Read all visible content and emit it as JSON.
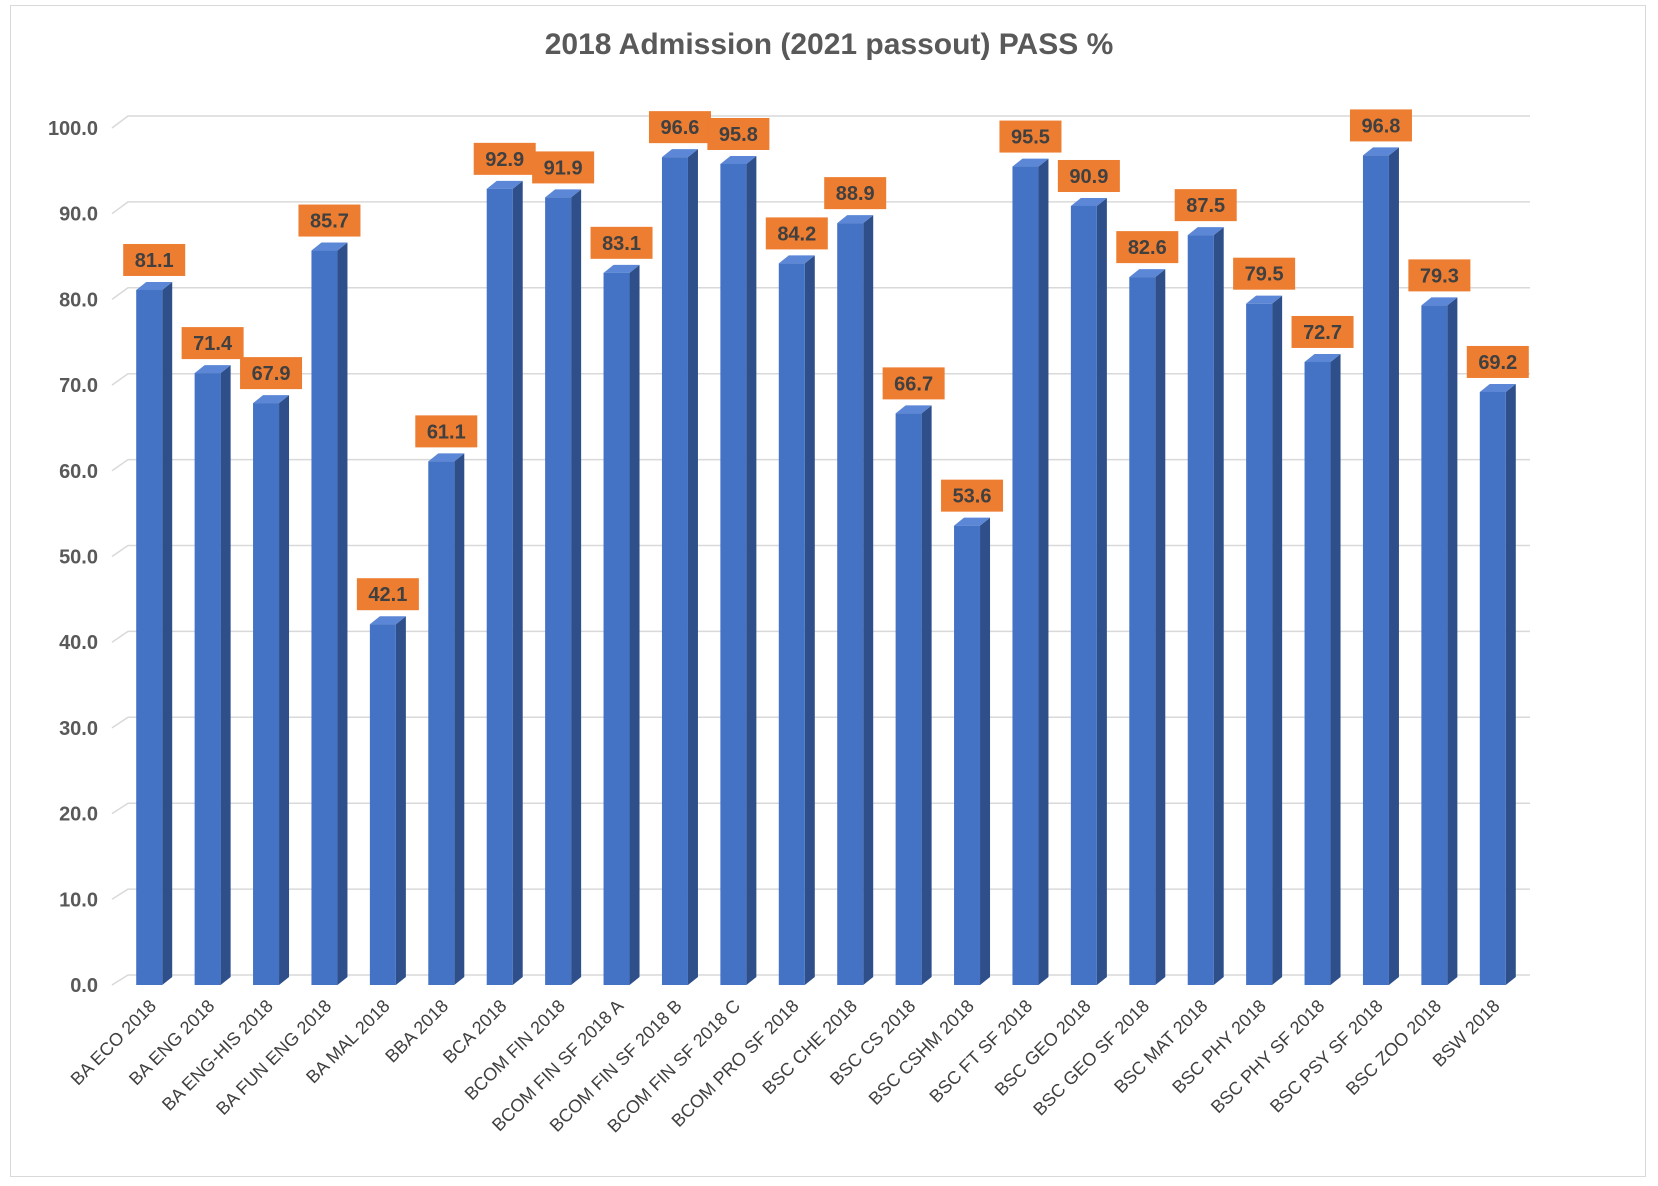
{
  "chart_data": {
    "type": "bar",
    "title": "2018 Admission (2021 passout) PASS %",
    "xlabel": "",
    "ylabel": "",
    "ylim": [
      0,
      100
    ],
    "yticks": [
      "0.0",
      "10.0",
      "20.0",
      "30.0",
      "40.0",
      "50.0",
      "60.0",
      "70.0",
      "80.0",
      "90.0",
      "100.0"
    ],
    "grid": true,
    "legend": "none",
    "categories": [
      "BA ECO 2018",
      "BA ENG 2018",
      "BA ENG-HIS 2018",
      "BA FUN ENG 2018",
      "BA MAL 2018",
      "BBA 2018",
      "BCA 2018",
      "BCOM FIN 2018",
      "BCOM FIN SF 2018 A",
      "BCOM FIN SF 2018 B",
      "BCOM FIN SF 2018 C",
      "BCOM PRO SF 2018",
      "BSC CHE 2018",
      "BSC CS 2018",
      "BSC CSHM 2018",
      "BSC FT SF 2018",
      "BSC GEO 2018",
      "BSC GEO SF 2018",
      "BSC MAT 2018",
      "BSC PHY 2018",
      "BSC PHY SF 2018",
      "BSC PSY SF 2018",
      "BSC ZOO 2018",
      "BSW 2018"
    ],
    "values": [
      81.1,
      71.4,
      67.9,
      85.7,
      42.1,
      61.1,
      92.9,
      91.9,
      83.1,
      96.6,
      95.8,
      84.2,
      88.9,
      66.7,
      53.6,
      95.5,
      90.9,
      82.6,
      87.5,
      79.5,
      72.7,
      96.8,
      79.3,
      69.2
    ],
    "data_labels": [
      "81.1",
      "71.4",
      "67.9",
      "85.7",
      "42.1",
      "61.1",
      "92.9",
      "91.9",
      "83.1",
      "96.6",
      "95.8",
      "84.2",
      "88.9",
      "66.7",
      "53.6",
      "95.5",
      "90.9",
      "82.6",
      "87.5",
      "79.5",
      "72.7",
      "96.8",
      "79.3",
      "69.2"
    ],
    "colors": {
      "bar_front": "#4472c4",
      "bar_side": "#2f4f8a",
      "bar_top": "#5b87d6",
      "label_fill": "#ed7d31",
      "grid": "#d9d9d9"
    }
  }
}
